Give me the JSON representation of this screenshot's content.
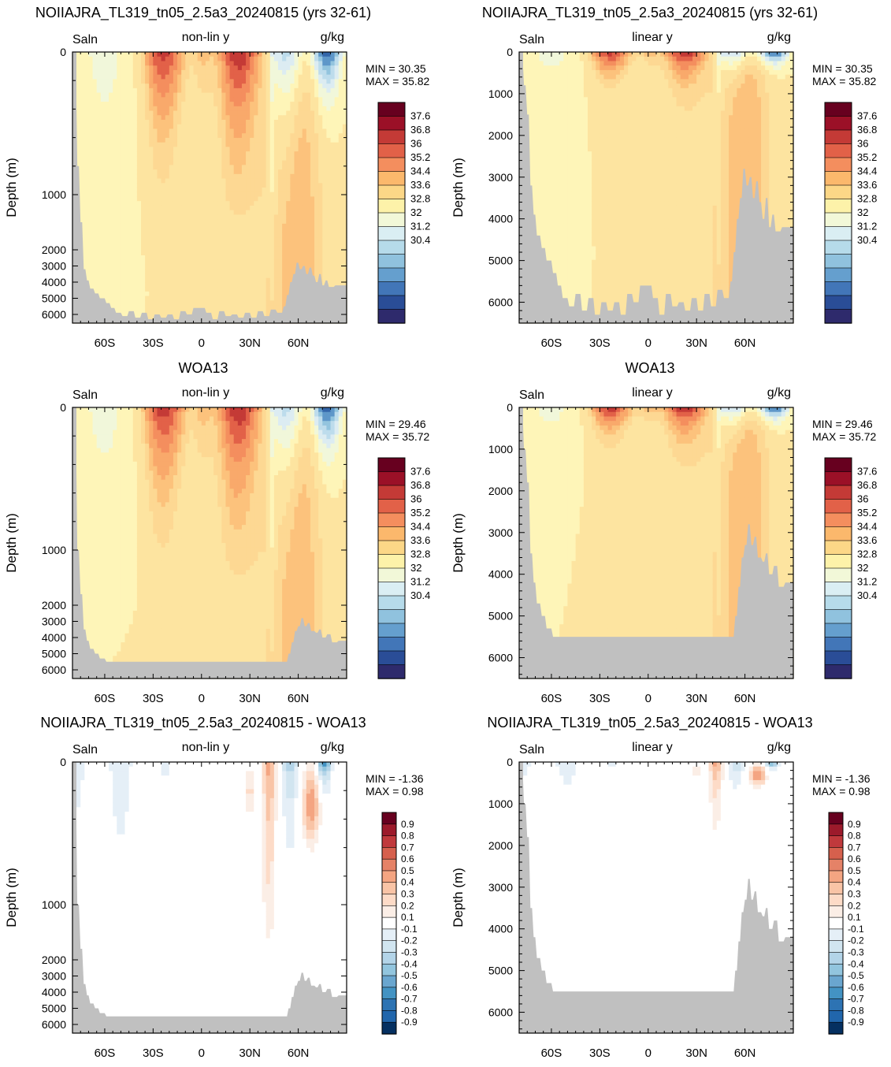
{
  "panels": [
    {
      "id": "p1",
      "title": "NOIIAJRA_TL319_tn05_2.5a3_20240815 (yrs 32-61)",
      "left": "Saln",
      "center": "non-lin y",
      "right": "g/kg",
      "min": "MIN =  30.35",
      "max": "MAX =  35.82",
      "scale": "nonlin",
      "field": "model",
      "colorbar": "abs"
    },
    {
      "id": "p2",
      "title": "NOIIAJRA_TL319_tn05_2.5a3_20240815 (yrs 32-61)",
      "left": "Saln",
      "center": "linear y",
      "right": "g/kg",
      "min": "MIN =  30.35",
      "max": "MAX =  35.82",
      "scale": "linear",
      "field": "model",
      "colorbar": "abs"
    },
    {
      "id": "p3",
      "title": "WOA13",
      "left": "Saln",
      "center": "non-lin y",
      "right": "g/kg",
      "min": "MIN =  29.46",
      "max": "MAX =  35.72",
      "scale": "nonlin",
      "field": "obs",
      "colorbar": "abs"
    },
    {
      "id": "p4",
      "title": "WOA13",
      "left": "Saln",
      "center": "linear y",
      "right": "g/kg",
      "min": "MIN =  29.46",
      "max": "MAX =  35.72",
      "scale": "linear",
      "field": "obs",
      "colorbar": "abs"
    },
    {
      "id": "p5",
      "title": "NOIIAJRA_TL319_tn05_2.5a3_20240815 - WOA13",
      "left": "Saln",
      "center": "non-lin y",
      "right": "g/kg",
      "min": "MIN = -1.36",
      "max": "MAX =   0.98",
      "scale": "nonlin",
      "field": "diff",
      "colorbar": "diff"
    },
    {
      "id": "p6",
      "title": "NOIIAJRA_TL319_tn05_2.5a3_20240815 - WOA13",
      "left": "Saln",
      "center": "linear y",
      "right": "g/kg",
      "min": "MIN = -1.36",
      "max": "MAX =   0.98",
      "scale": "linear",
      "field": "diff",
      "colorbar": "diff"
    }
  ],
  "axes": {
    "ylabel": "Depth (m)",
    "xticks": [
      "60S",
      "30S",
      "0",
      "30N",
      "60N"
    ],
    "xtick_lat": [
      -60,
      -30,
      0,
      30,
      60
    ],
    "xlim": [
      -80,
      90
    ],
    "yticks_nonlin": [
      "0",
      "1000",
      "2000",
      "3000",
      "4000",
      "5000",
      "6000"
    ],
    "yticks_linear": [
      "0",
      "1000",
      "2000",
      "3000",
      "4000",
      "5000",
      "6000"
    ],
    "ylim": [
      0,
      6500
    ]
  },
  "colorbars": {
    "abs": {
      "labels": [
        "37.6",
        "36.8",
        "36",
        "35.2",
        "34.4",
        "33.6",
        "32.8",
        "32",
        "31.2",
        "30.4"
      ],
      "colors": [
        "#67001f",
        "#9b1027",
        "#c43a36",
        "#e26148",
        "#f48e5e",
        "#fbb86c",
        "#fcd787",
        "#fdf2a9",
        "#f2f8d8",
        "#daeef3",
        "#b6dbea",
        "#90c2de",
        "#659fce",
        "#4276b8",
        "#2a4d97",
        "#2e2a6c"
      ]
    },
    "diff": {
      "labels": [
        "0.9",
        "0.8",
        "0.7",
        "0.6",
        "0.5",
        "0.4",
        "0.3",
        "0.2",
        "0.1",
        "-0.1",
        "-0.2",
        "-0.3",
        "-0.4",
        "-0.5",
        "-0.6",
        "-0.7",
        "-0.8",
        "-0.9"
      ],
      "colors": [
        "#67001f",
        "#9c1a2b",
        "#c0393c",
        "#d6604d",
        "#e58267",
        "#f4a582",
        "#f9c4a6",
        "#fddbc7",
        "#fbeee6",
        "#ffffff",
        "#e5eff7",
        "#d1e5f0",
        "#b3d4e8",
        "#92c5de",
        "#6aa6cf",
        "#4393c3",
        "#2d73b3",
        "#2166ac",
        "#053061"
      ]
    }
  },
  "background": {
    "land": "#c0c0c0",
    "ocean_model": "#fbe29d",
    "ocean_diff": "#ffffff"
  }
}
